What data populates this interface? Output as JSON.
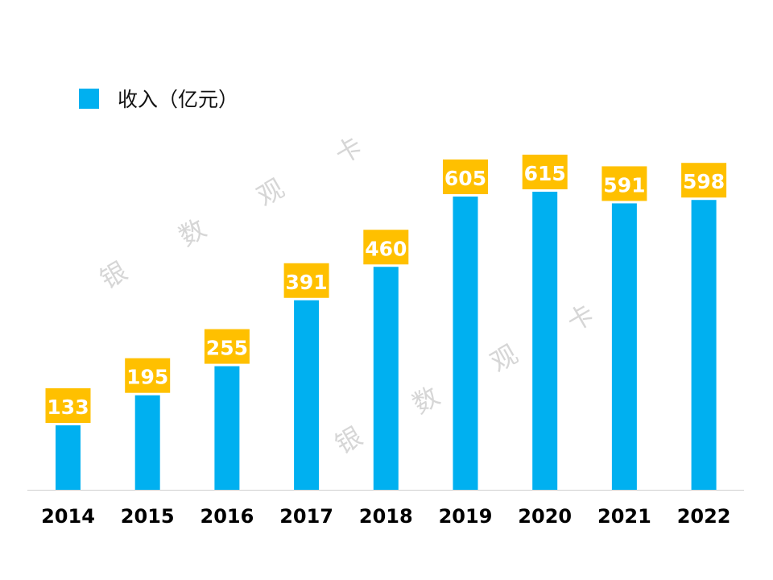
{
  "chart_data": {
    "type": "bar",
    "title": "",
    "xlabel": "",
    "ylabel": "",
    "categories": [
      "2014",
      "2015",
      "2016",
      "2017",
      "2018",
      "2019",
      "2020",
      "2021",
      "2022"
    ],
    "series": [
      {
        "name": "收入（亿元）",
        "values": [
          133,
          195,
          255,
          391,
          460,
          605,
          615,
          591,
          598
        ]
      }
    ],
    "ylim": [
      0,
      680
    ],
    "grid": false,
    "legend": "top-left",
    "data_labels": true
  },
  "colors": {
    "bar": "#00B0F0",
    "label_bg": "#FFC000",
    "label_text": "#FFFFFF",
    "axis": "#D0D0D0",
    "tick_text": "#000000"
  },
  "watermark": {
    "chars": [
      "银",
      "数",
      "观",
      "卡"
    ],
    "text": "银数观卡"
  }
}
